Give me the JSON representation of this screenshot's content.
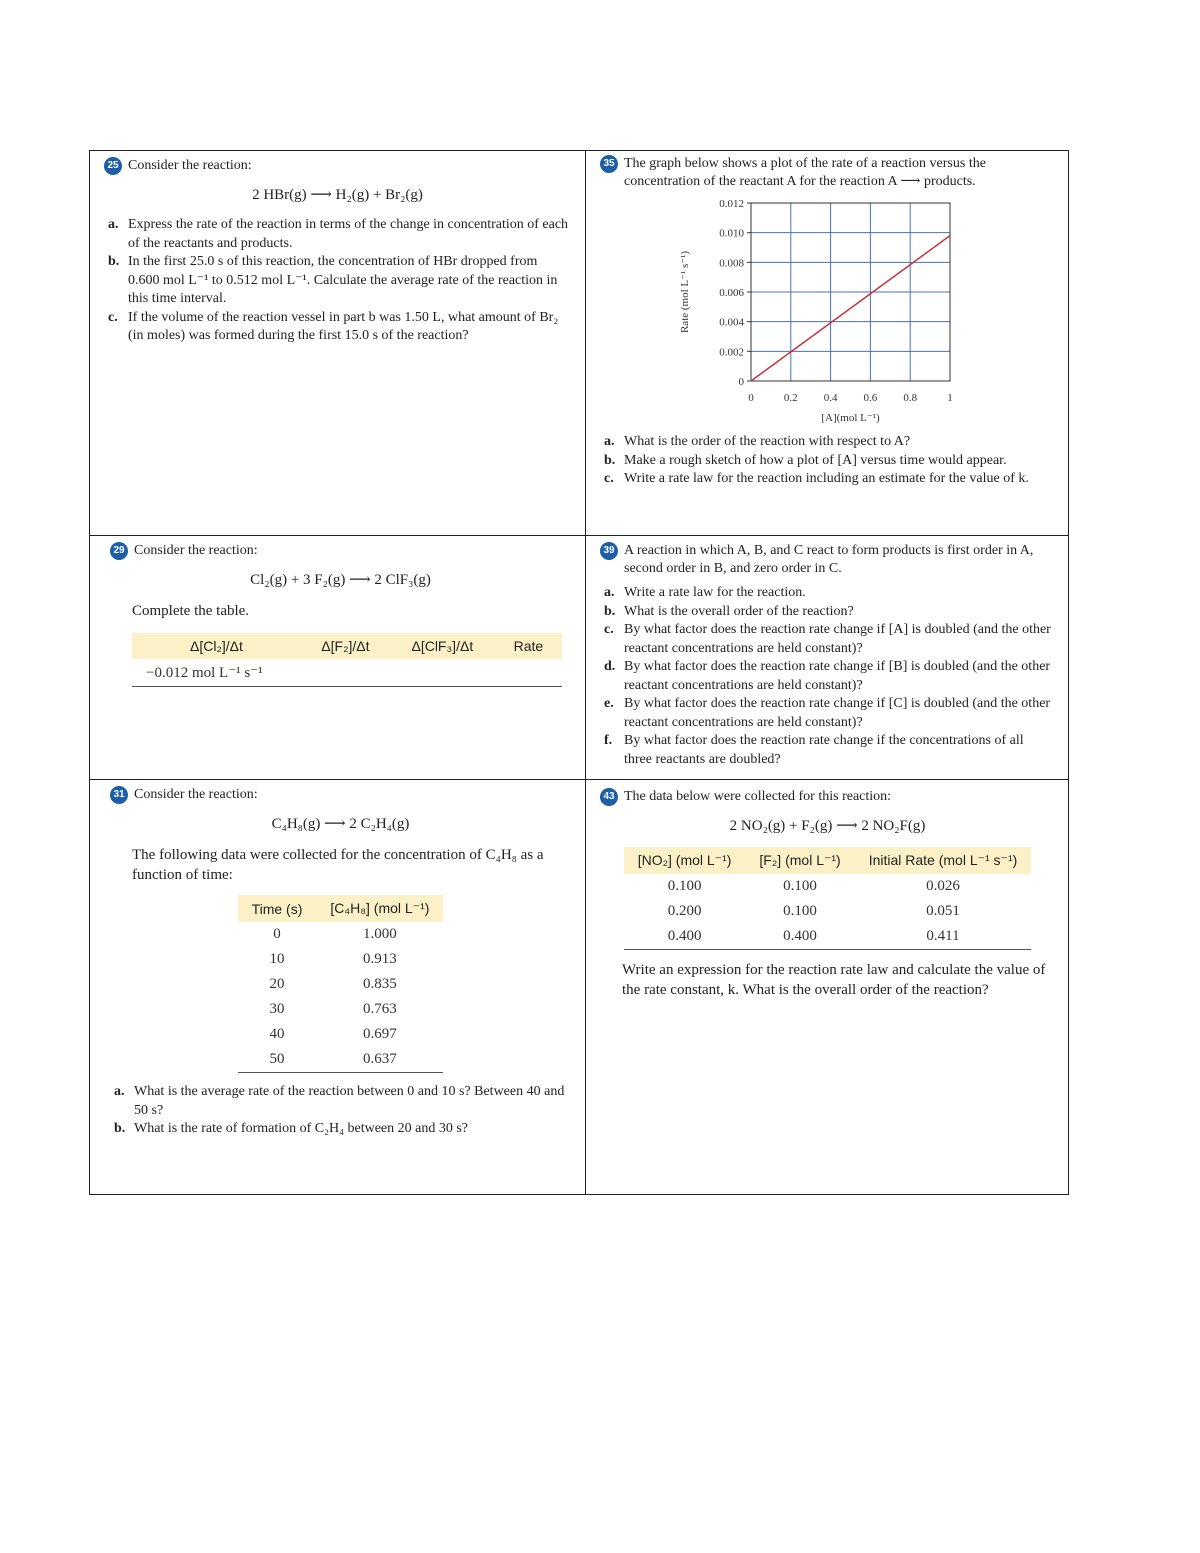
{
  "problems": [
    {
      "number": "25",
      "intro": "Consider the reaction:",
      "equation": "2 HBr(g) ⟶ H₂(g) + Br₂(g)",
      "parts": [
        {
          "label": "a.",
          "text": "Express the rate of the reaction in terms of the change in concentration of each of the reactants and products."
        },
        {
          "label": "b.",
          "text": "In the first 25.0 s of this reaction, the concentration of HBr dropped from 0.600 mol L⁻¹ to 0.512 mol L⁻¹. Calculate the average rate of the reaction in this time interval."
        },
        {
          "label": "c.",
          "text": "If the volume of the reaction vessel in part b was 1.50 L, what amount of Br₂ (in moles) was formed during the first 15.0 s of the reaction?"
        }
      ]
    },
    {
      "number": "35",
      "intro": "The graph below shows a plot of the rate of a reaction versus the concentration of the reactant A for the reaction A ⟶ products.",
      "parts": [
        {
          "label": "a.",
          "text": "What is the order of the reaction with respect to A?"
        },
        {
          "label": "b.",
          "text": "Make a rough sketch of how a plot of [A] versus time would appear."
        },
        {
          "label": "c.",
          "text": "Write a rate law for the reaction including an estimate for the value of k."
        }
      ]
    },
    {
      "number": "29",
      "intro": "Consider the reaction:",
      "equation": "Cl₂(g) + 3 F₂(g) ⟶ 2 ClF₃(g)",
      "text": "Complete the table.",
      "table": {
        "headers": [
          "Δ[Cl₂]/Δt",
          "Δ[F₂]/Δt",
          "Δ[ClF₃]/Δt",
          "Rate"
        ],
        "rows": [
          [
            "−0.012 mol L⁻¹ s⁻¹"
          ]
        ]
      }
    },
    {
      "number": "39",
      "intro": "A reaction in which A, B, and C react to form products is first order in A, second order in B, and zero order in C.",
      "parts": [
        {
          "label": "a.",
          "text": "Write a rate law for the reaction."
        },
        {
          "label": "b.",
          "text": "What is the overall order of the reaction?"
        },
        {
          "label": "c.",
          "text": "By what factor does the reaction rate change if [A] is doubled (and the other reactant concentrations are held constant)?"
        },
        {
          "label": "d.",
          "text": "By what factor does the reaction rate change if [B] is doubled (and the other reactant concentrations are held constant)?"
        },
        {
          "label": "e.",
          "text": "By what factor does the reaction rate change if [C] is doubled (and the other reactant concentrations are held constant)?"
        },
        {
          "label": "f.",
          "text": "By what factor does the reaction rate change if the concentrations of all three reactants are doubled?"
        }
      ]
    },
    {
      "number": "31",
      "intro": "Consider the reaction:",
      "equation": "C₄H₈(g) ⟶ 2 C₂H₄(g)",
      "text": "The following data were collected for the concentration of C₄H₈ as a function of time:",
      "table": {
        "headers": [
          "Time (s)",
          "[C₄H₈] (mol L⁻¹)"
        ],
        "rows": [
          [
            "0",
            "1.000"
          ],
          [
            "10",
            "0.913"
          ],
          [
            "20",
            "0.835"
          ],
          [
            "30",
            "0.763"
          ],
          [
            "40",
            "0.697"
          ],
          [
            "50",
            "0.637"
          ]
        ]
      },
      "parts": [
        {
          "label": "a.",
          "text": "What is the average rate of the reaction between 0 and 10 s? Between 40 and 50 s?"
        },
        {
          "label": "b.",
          "text": "What is the rate of formation of C₂H₄ between 20 and 30 s?"
        }
      ]
    },
    {
      "number": "43",
      "intro": "The data below were collected for this reaction:",
      "equation": "2 NO₂(g) + F₂(g) ⟶ 2 NO₂F(g)",
      "table": {
        "headers": [
          "[NO₂] (mol L⁻¹)",
          "[F₂] (mol L⁻¹)",
          "Initial Rate (mol L⁻¹ s⁻¹)"
        ],
        "rows": [
          [
            "0.100",
            "0.100",
            "0.026"
          ],
          [
            "0.200",
            "0.100",
            "0.051"
          ],
          [
            "0.400",
            "0.400",
            "0.411"
          ]
        ]
      },
      "text": "Write an expression for the reaction rate law and calculate the value of the rate constant, k. What is the overall order of the reaction?"
    }
  ],
  "chart_data": {
    "type": "line",
    "x_label": "[A](mol L⁻¹)",
    "y_label": "Rate (mol L⁻¹ s⁻¹)",
    "x": [
      0,
      1
    ],
    "series": [
      {
        "color": "#c8323c",
        "values": [
          0,
          0.0098
        ]
      }
    ],
    "xlim": [
      0,
      1
    ],
    "ylim": [
      0,
      0.012
    ],
    "xticks": [
      0,
      0.2,
      0.4,
      0.6,
      0.8,
      1
    ],
    "yticks": [
      0,
      0.002,
      0.004,
      0.006,
      0.008,
      {
        "value": 0.01,
        "label": "0.010"
      },
      0.012
    ],
    "grid": true
  }
}
